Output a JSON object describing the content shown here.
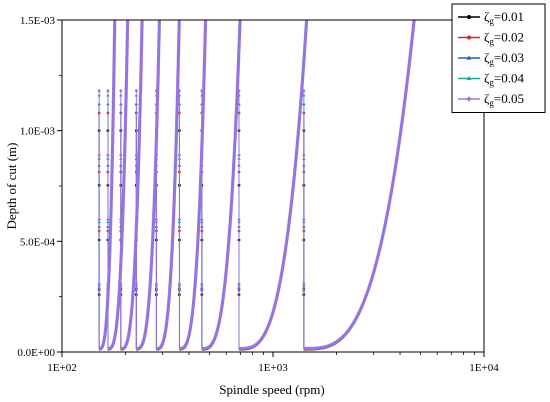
{
  "chart_data": {
    "type": "line",
    "xlabel": "Spindle speed (rpm)",
    "ylabel": "Depth of cut (m)",
    "x_scale": "log",
    "xlim": [
      100,
      10000
    ],
    "ylim": [
      0,
      0.0015
    ],
    "x_ticks": [
      100,
      1000,
      10000
    ],
    "x_tick_labels": [
      "1E+02",
      "1E+03",
      "1E+04"
    ],
    "y_ticks": [
      0,
      0.0005,
      0.001,
      0.0015
    ],
    "y_tick_labels": [
      "0.0E+00",
      "5.0E-04",
      "1.0E-03",
      "1.5E-03"
    ],
    "grid": false,
    "legend_position": "top-right",
    "lobe_boundaries_rpm": [
      150,
      165,
      190,
      225,
      280,
      360,
      460,
      690,
      1400
    ],
    "lobe_tops_rpm": [
      178,
      205,
      240,
      290,
      360,
      480,
      700,
      1450,
      4700
    ],
    "series": [
      {
        "name": "ζg=0.01",
        "legend_symbol": "ζ",
        "legend_sub": "g",
        "legend_value": "=0.01",
        "color": "#000000",
        "marker": "circle",
        "spike_height": 0.001,
        "min_depth": 1.2e-05
      },
      {
        "name": "ζg=0.02",
        "legend_symbol": "ζ",
        "legend_sub": "g",
        "legend_value": "=0.02",
        "color": "#d62728",
        "marker": "circle",
        "spike_height": 0.00108,
        "min_depth": 1.3e-05
      },
      {
        "name": "ζg=0.03",
        "legend_symbol": "ζ",
        "legend_sub": "g",
        "legend_value": "=0.03",
        "color": "#1f5fd6",
        "marker": "triangle",
        "spike_height": 0.00112,
        "min_depth": 1.4e-05
      },
      {
        "name": "ζg=0.04",
        "legend_symbol": "ζ",
        "legend_sub": "g",
        "legend_value": "=0.04",
        "color": "#1aa39a",
        "marker": "triangle",
        "spike_height": 0.00116,
        "min_depth": 1.5e-05
      },
      {
        "name": "ζg=0.05",
        "legend_symbol": "ζ",
        "legend_sub": "g",
        "legend_value": "=0.05",
        "color": "#a070e6",
        "marker": "diamond",
        "spike_height": 0.00118,
        "min_depth": 1.6e-05
      }
    ]
  }
}
